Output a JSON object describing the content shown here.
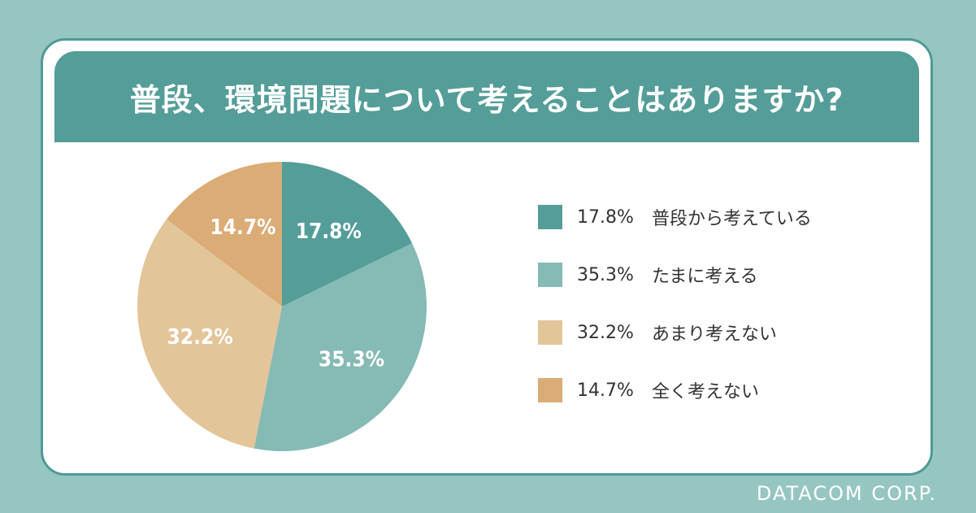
{
  "title": "普段、環境問題について考えることはありますか?",
  "brand": "DATACOM CORP.",
  "colors": {
    "background": "#96c6c1",
    "band": "#549d98",
    "card_border": "#4f9a95"
  },
  "chart_data": {
    "type": "pie",
    "title": "普段、環境問題について考えることはありますか?",
    "unit": "%",
    "slices": [
      {
        "label": "普段から考えている",
        "value": 17.8,
        "display": "17.8%",
        "color": "#549d98"
      },
      {
        "label": "たまに考える",
        "value": 35.3,
        "display": "35.3%",
        "color": "#85bab5"
      },
      {
        "label": "あまり考えない",
        "value": 32.2,
        "display": "32.2%",
        "color": "#e3c59a"
      },
      {
        "label": "全く考えない",
        "value": 14.7,
        "display": "14.7%",
        "color": "#dbac76"
      }
    ],
    "start": "12 o'clock",
    "direction": "clockwise",
    "legend": "right"
  }
}
